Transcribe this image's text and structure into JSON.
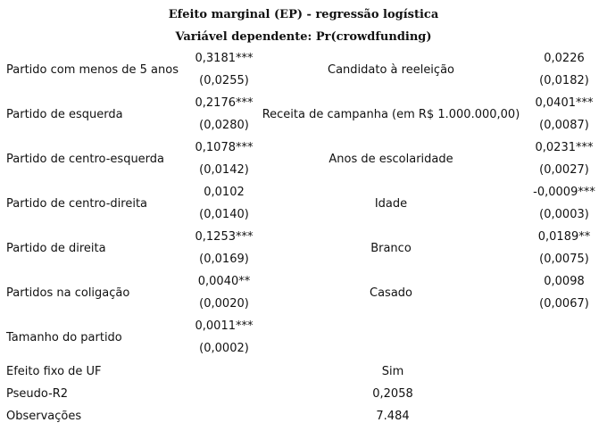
{
  "title": "Efeito marginal (EP) - regressão logística",
  "subtitle": "Variável dependente: Pr(crowdfunding)",
  "rows": [
    {
      "label1": "Partido com menos de 5 anos",
      "coef1": "0,3181***",
      "se1": "(0,0255)",
      "label2": "Candidato à reeleição",
      "coef2": "0,0226",
      "se2": "(0,0182)"
    },
    {
      "label1": "Partido de esquerda",
      "coef1": "0,2176***",
      "se1": "(0,0280)",
      "label2": "Receita de campanha (em R$ 1.000.000,00)",
      "coef2": "0,0401***",
      "se2": "(0,0087)"
    },
    {
      "label1": "Partido de centro-esquerda",
      "coef1": "0,1078***",
      "se1": "(0,0142)",
      "label2": "Anos de escolaridade",
      "coef2": "0,0231***",
      "se2": "(0,0027)"
    },
    {
      "label1": "Partido de centro-direita",
      "coef1": "0,0102",
      "se1": "(0,0140)",
      "label2": "Idade",
      "coef2": "-0,0009***",
      "se2": "(0,0003)"
    },
    {
      "label1": "Partido de direita",
      "coef1": "0,1253***",
      "se1": "(0,0169)",
      "label2": "Branco",
      "coef2": "0,0189**",
      "se2": "(0,0075)"
    },
    {
      "label1": "Partidos na coligação",
      "coef1": "0,0040**",
      "se1": "(0,0020)",
      "label2": "Casado",
      "coef2": "0,0098",
      "se2": "(0,0067)"
    },
    {
      "label1": "Tamanho do partido",
      "coef1": "0,0011***",
      "se1": "(0,0002)",
      "label2": "",
      "coef2": "",
      "se2": ""
    }
  ],
  "footer": [
    {
      "label": "Efeito fixo de UF",
      "value": "Sim"
    },
    {
      "label": "Pseudo-R2",
      "value": "0,2058"
    },
    {
      "label": "Observações",
      "value": "7.484"
    }
  ]
}
